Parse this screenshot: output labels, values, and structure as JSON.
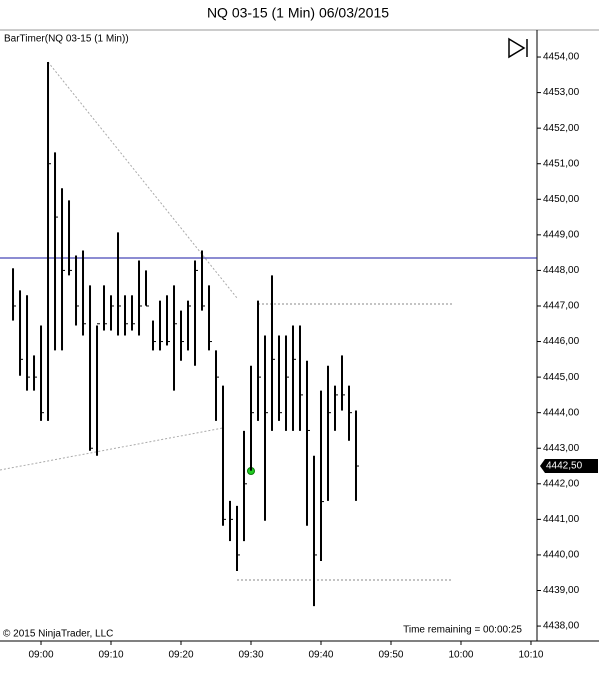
{
  "chart_data": {
    "type": "ohlc",
    "title": "NQ 03-15 (1 Min)  06/03/2015",
    "indicator": "BarTimer(NQ 03-15 (1 Min))",
    "copyright": "© 2015 NinjaTrader, LLC",
    "time_remaining": "Time remaining = 00:00:25",
    "color": "#000000",
    "x": [
      536,
      537,
      538,
      539,
      540,
      541,
      542,
      543,
      544,
      545,
      546,
      547,
      548,
      549,
      550,
      551,
      552,
      553,
      554,
      555,
      556,
      557,
      558,
      559,
      560,
      561,
      562,
      563,
      564,
      565,
      566,
      567,
      568,
      569,
      570,
      571,
      572,
      573,
      574,
      575,
      576,
      577,
      578,
      579,
      580,
      581,
      582,
      583,
      584,
      585
    ],
    "high": [
      4448.06,
      4447.44,
      4447.3,
      4445.61,
      4446.45,
      4453.86,
      4451.32,
      4450.31,
      4449.97,
      4448.42,
      4448.56,
      4447.58,
      4446.45,
      4447.58,
      4447.3,
      4449.07,
      4447.3,
      4447.3,
      4448.28,
      4448.0,
      4446.59,
      4447.15,
      4447.3,
      4447.58,
      4446.87,
      4447.15,
      4448.28,
      4448.56,
      4447.58,
      4445.75,
      4444.76,
      4441.52,
      4441.38,
      4443.49,
      4445.32,
      4447.15,
      4446.17,
      4447.86,
      4446.17,
      4446.17,
      4446.45,
      4446.45,
      4445.46,
      4442.79,
      4444.62,
      4445.32,
      4444.76,
      4445.61,
      4444.76,
      4444.06
    ],
    "low": [
      4446.59,
      4445.04,
      4444.62,
      4444.62,
      4443.77,
      4443.77,
      4445.75,
      4445.75,
      4447.86,
      4446.45,
      4446.17,
      4442.93,
      4442.79,
      4446.31,
      4446.31,
      4446.17,
      4446.17,
      4446.31,
      4446.17,
      4447.01,
      4445.75,
      4445.75,
      4445.89,
      4444.62,
      4445.46,
      4445.75,
      4445.32,
      4446.87,
      4445.75,
      4443.77,
      4440.82,
      4440.39,
      4439.55,
      4440.39,
      4442.37,
      4443.77,
      4440.96,
      4443.49,
      4443.77,
      4443.49,
      4443.49,
      4443.49,
      4440.82,
      4438.56,
      4439.83,
      4441.52,
      4443.49,
      4444.06,
      4443.21,
      4441.52
    ],
    "close": [
      4447.0,
      4445.5,
      4445.0,
      4445.0,
      4444.0,
      4451.0,
      4449.5,
      4448.0,
      4448.0,
      4447.0,
      4446.5,
      4443.0,
      4446.5,
      4446.5,
      4447.0,
      4447.0,
      4446.5,
      4446.5,
      4447.0,
      4447.0,
      4446.0,
      4446.0,
      4446.0,
      4446.5,
      4446.0,
      4447.0,
      4448.0,
      4447.0,
      4446.0,
      4445.0,
      4441.0,
      4441.0,
      4440.0,
      4442.0,
      4444.0,
      4445.0,
      4444.0,
      4445.5,
      4444.0,
      4445.0,
      4445.5,
      4444.5,
      4443.5,
      4440.0,
      4441.5,
      4444.0,
      4444.5,
      4444.5,
      4444.0,
      4442.5
    ],
    "xlim": [
      534.14,
      610.86
    ],
    "ylim": [
      4437.58,
      4454.76
    ],
    "xticks": [
      {
        "value": 540,
        "label": "09:00"
      },
      {
        "value": 550,
        "label": "09:10"
      },
      {
        "value": 560,
        "label": "09:20"
      },
      {
        "value": 570,
        "label": "09:30"
      },
      {
        "value": 580,
        "label": "09:40"
      },
      {
        "value": 590,
        "label": "09:50"
      },
      {
        "value": 600,
        "label": "10:00"
      },
      {
        "value": 610,
        "label": "10:10"
      }
    ],
    "yticks": [
      {
        "value": 4438,
        "label": "4438,00"
      },
      {
        "value": 4439,
        "label": "4439,00"
      },
      {
        "value": 4440,
        "label": "4440,00"
      },
      {
        "value": 4441,
        "label": "4441,00"
      },
      {
        "value": 4442,
        "label": "4442,00"
      },
      {
        "value": 4443,
        "label": "4443,00"
      },
      {
        "value": 4444,
        "label": "4444,00"
      },
      {
        "value": 4445,
        "label": "4445,00"
      },
      {
        "value": 4446,
        "label": "4446,00"
      },
      {
        "value": 4447,
        "label": "4447,00"
      },
      {
        "value": 4448,
        "label": "4448,00"
      },
      {
        "value": 4449,
        "label": "4449,00"
      },
      {
        "value": 4450,
        "label": "4450,00"
      },
      {
        "value": 4451,
        "label": "4451,00"
      },
      {
        "value": 4452,
        "label": "4452,00"
      },
      {
        "value": 4453,
        "label": "4453,00"
      },
      {
        "value": 4454,
        "label": "4454,00"
      }
    ],
    "current_price": {
      "value": 4442.5,
      "label": "4442,50"
    }
  }
}
